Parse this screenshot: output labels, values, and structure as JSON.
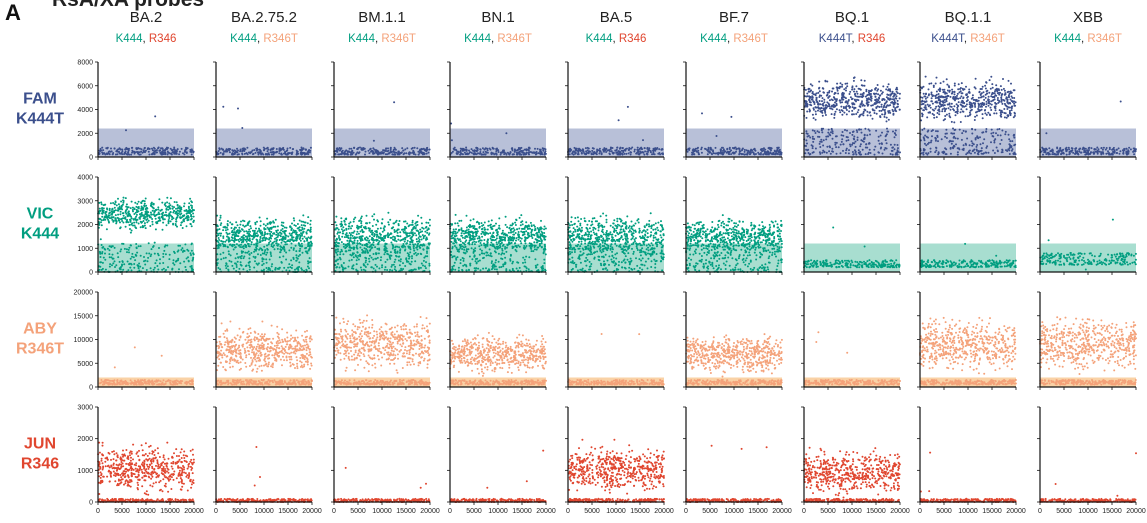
{
  "figure": {
    "panel_letter": "A",
    "title_visible_part": "RsA/XA probes"
  },
  "colors": {
    "FAM": "#3b4f8c",
    "VIC": "#009e80",
    "ABY": "#f4a27a",
    "JUN": "#e0462f",
    "threshold_FAM": "#b8c0d8",
    "threshold_VIC": "#a8ded0",
    "threshold_ABY": "#f9d2a6",
    "threshold_JUN": "#f5b7a6",
    "mutation_base_K444": "#009e80",
    "mutation_base_R346": "#e0462f",
    "mutation_var_K444T": "#3b4f8c",
    "mutation_var_R346T": "#f4a27a"
  },
  "columns": [
    {
      "name": "BA.2",
      "m1": "K444",
      "m1_color": "#009e80",
      "m2": "R346",
      "m2_color": "#e0462f"
    },
    {
      "name": "BA.2.75.2",
      "m1": "K444",
      "m1_color": "#009e80",
      "m2": "R346T",
      "m2_color": "#f4a27a"
    },
    {
      "name": "BM.1.1",
      "m1": "K444",
      "m1_color": "#009e80",
      "m2": "R346T",
      "m2_color": "#f4a27a"
    },
    {
      "name": "BN.1",
      "m1": "K444",
      "m1_color": "#009e80",
      "m2": "R346T",
      "m2_color": "#f4a27a"
    },
    {
      "name": "BA.5",
      "m1": "K444",
      "m1_color": "#009e80",
      "m2": "R346",
      "m2_color": "#e0462f"
    },
    {
      "name": "BF.7",
      "m1": "K444",
      "m1_color": "#009e80",
      "m2": "R346T",
      "m2_color": "#f4a27a"
    },
    {
      "name": "BQ.1",
      "m1": "K444T",
      "m1_color": "#3b4f8c",
      "m2": "R346",
      "m2_color": "#e0462f"
    },
    {
      "name": "BQ.1.1",
      "m1": "K444T",
      "m1_color": "#3b4f8c",
      "m2": "R346T",
      "m2_color": "#f4a27a"
    },
    {
      "name": "XBB",
      "m1": "K444",
      "m1_color": "#009e80",
      "m2": "R346T",
      "m2_color": "#f4a27a"
    }
  ],
  "rows": [
    {
      "dye": "FAM",
      "target": "K444T",
      "color": "#3b4f8c",
      "threshold_color": "#b8c0d8",
      "yticks": [
        "8000",
        "6000",
        "4000",
        "2000",
        "0"
      ],
      "ymax": 8000,
      "threshold": 2400
    },
    {
      "dye": "VIC",
      "target": "K444",
      "color": "#009e80",
      "threshold_color": "#a8ded0",
      "yticks": [
        "4000",
        "3000",
        "2000",
        "1000",
        "0"
      ],
      "ymax": 4000,
      "threshold": 1200
    },
    {
      "dye": "ABY",
      "target": "R346T",
      "color": "#f4a27a",
      "threshold_color": "#f9d2a6",
      "yticks": [
        "20000",
        "15000",
        "10000",
        "5000",
        "0"
      ],
      "ymax": 20000,
      "threshold": 2000
    },
    {
      "dye": "JUN",
      "target": "R346",
      "color": "#e0462f",
      "threshold_color": "#f5b7a6",
      "yticks": [
        "3000",
        "2000",
        "1000",
        "0"
      ],
      "ymax": 3000,
      "threshold": null
    }
  ],
  "xaxis": {
    "ticks": [
      "0",
      "5000",
      "10000",
      "15000",
      "20000"
    ],
    "xmax": 20000
  },
  "chart_data": {
    "type": "scatter",
    "title": "RsA/XA probes",
    "xlabel": "",
    "ylabel": "",
    "xlim": [
      0,
      20000
    ],
    "grid": false,
    "legend": "none",
    "description_keys": "panels[row][col] with positive-cluster fluorescence ranges; negative cluster near baseline",
    "panels": [
      [
        {
          "col": "BA.2",
          "pos": null,
          "neg": [
            200,
            800
          ]
        },
        {
          "col": "BA.2.75.2",
          "pos": null,
          "neg": [
            200,
            800
          ]
        },
        {
          "col": "BM.1.1",
          "pos": null,
          "neg": [
            200,
            800
          ]
        },
        {
          "col": "BN.1",
          "pos": null,
          "neg": [
            200,
            800
          ]
        },
        {
          "col": "BA.5",
          "pos": null,
          "neg": [
            200,
            800
          ]
        },
        {
          "col": "BF.7",
          "pos": null,
          "neg": [
            200,
            800
          ]
        },
        {
          "col": "BQ.1",
          "pos": [
            2500,
            7000
          ],
          "neg": [
            200,
            2400
          ]
        },
        {
          "col": "BQ.1.1",
          "pos": [
            2500,
            7000
          ],
          "neg": [
            200,
            2400
          ]
        },
        {
          "col": "XBB",
          "pos": null,
          "neg": [
            200,
            800
          ]
        }
      ],
      [
        {
          "col": "BA.2",
          "pos": [
            1600,
            3300
          ],
          "neg": [
            0,
            1200
          ]
        },
        {
          "col": "BA.2.75.2",
          "pos": [
            600,
            2500
          ],
          "neg": [
            0,
            1200
          ]
        },
        {
          "col": "BM.1.1",
          "pos": [
            300,
            2700
          ],
          "neg": [
            0,
            1200
          ]
        },
        {
          "col": "BN.1",
          "pos": [
            600,
            2500
          ],
          "neg": [
            0,
            1200
          ]
        },
        {
          "col": "BA.5",
          "pos": [
            300,
            2700
          ],
          "neg": [
            0,
            1200
          ]
        },
        {
          "col": "BF.7",
          "pos": [
            500,
            2500
          ],
          "neg": [
            0,
            1200
          ]
        },
        {
          "col": "BQ.1",
          "pos": null,
          "neg": [
            200,
            500
          ]
        },
        {
          "col": "BQ.1.1",
          "pos": null,
          "neg": [
            200,
            500
          ]
        },
        {
          "col": "XBB",
          "pos": null,
          "neg": [
            300,
            800
          ]
        }
      ],
      [
        {
          "col": "BA.2",
          "pos": null,
          "neg": [
            500,
            1500
          ]
        },
        {
          "col": "BA.2.75.2",
          "pos": [
            2000,
            14000
          ],
          "neg": [
            500,
            1500
          ]
        },
        {
          "col": "BM.1.1",
          "pos": [
            2000,
            16000
          ],
          "neg": [
            500,
            1500
          ]
        },
        {
          "col": "BN.1",
          "pos": [
            2000,
            12000
          ],
          "neg": [
            500,
            1500
          ]
        },
        {
          "col": "BA.5",
          "pos": null,
          "neg": [
            500,
            1500
          ]
        },
        {
          "col": "BF.7",
          "pos": [
            2000,
            12000
          ],
          "neg": [
            500,
            1500
          ]
        },
        {
          "col": "BQ.1",
          "pos": null,
          "neg": [
            500,
            1500
          ]
        },
        {
          "col": "BQ.1.1",
          "pos": [
            2000,
            16000
          ],
          "neg": [
            500,
            1500
          ]
        },
        {
          "col": "XBB",
          "pos": [
            2000,
            16000
          ],
          "neg": [
            500,
            1500
          ]
        }
      ],
      [
        {
          "col": "BA.2",
          "pos": [
            100,
            2000
          ],
          "neg": [
            0,
            100
          ]
        },
        {
          "col": "BA.2.75.2",
          "pos": null,
          "neg": [
            0,
            100
          ]
        },
        {
          "col": "BM.1.1",
          "pos": null,
          "neg": [
            0,
            100
          ]
        },
        {
          "col": "BN.1",
          "pos": null,
          "neg": [
            0,
            100
          ]
        },
        {
          "col": "BA.5",
          "pos": [
            100,
            2000
          ],
          "neg": [
            0,
            100
          ]
        },
        {
          "col": "BF.7",
          "pos": null,
          "neg": [
            0,
            100
          ]
        },
        {
          "col": "BQ.1",
          "pos": [
            50,
            1800
          ],
          "neg": [
            0,
            100
          ]
        },
        {
          "col": "BQ.1.1",
          "pos": null,
          "neg": [
            0,
            100
          ]
        },
        {
          "col": "XBB",
          "pos": null,
          "neg": [
            0,
            100
          ]
        }
      ]
    ]
  }
}
